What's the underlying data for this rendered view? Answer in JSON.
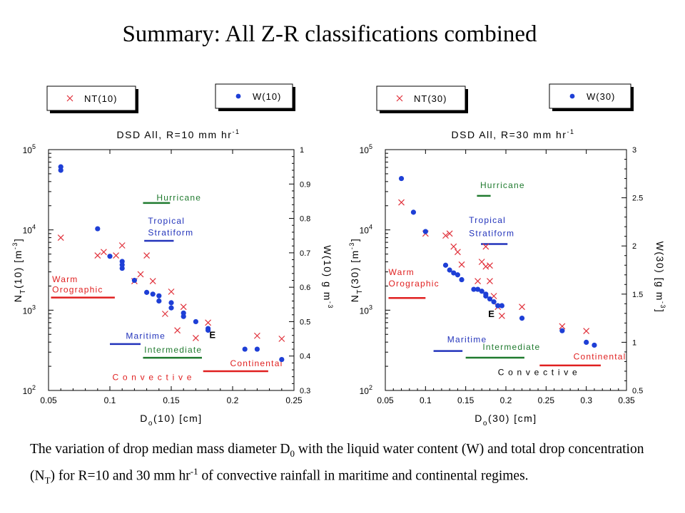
{
  "slide": {
    "title": "Summary:  All Z-R classifications combined",
    "caption": [
      {
        "t": "The variation of drop median mass diameter D"
      },
      {
        "t": "0",
        "sub": true
      },
      {
        "t": " with the liquid water content (W) and total drop concentration (N"
      },
      {
        "t": "T",
        "sub": true
      },
      {
        "t": ") for R=10 and 30 mm hr"
      },
      {
        "t": "-1",
        "sup": true
      },
      {
        "t": " of convective rainfall in maritime and continental regimes."
      }
    ]
  },
  "colors": {
    "nt_marker": "#e0303a",
    "w_marker": "#1e3fd6",
    "hurricane": "#1f7a2e",
    "tropical_stratiform": "#2233bb",
    "warm_orographic": "#e02020",
    "maritime": "#2233bb",
    "intermediate": "#1f7a2e",
    "continental": "#e02020",
    "convective": "#e02020"
  },
  "chart_data": [
    {
      "type": "scatter",
      "title": "DSD  All, R=10 mm hr",
      "title_sup": "-1",
      "xlabel": "(10) [cm]",
      "xlabel_prefix": "D",
      "xlabel_sub": "o",
      "ylabel": "(10)  [m",
      "ylabel_prefix": "N",
      "ylabel_sub": "T",
      "ylabel_sup": "-3",
      "ylabel_end": "]",
      "y2label": "W(10) g m",
      "y2label_sup": "-3",
      "xlim": [
        0.05,
        0.25
      ],
      "xticks": [
        0.05,
        0.1,
        0.15,
        0.2,
        0.25
      ],
      "xtick_labels": [
        "0.05",
        "0.1",
        "0.15",
        "0.2",
        "0.25"
      ],
      "ylim": [
        100,
        100000
      ],
      "yscale": "log",
      "yticks": [
        100,
        1000,
        10000,
        100000
      ],
      "ytick_base": [
        "10",
        "10",
        "10",
        "10"
      ],
      "ytick_exp": [
        "2",
        "3",
        "4",
        "5"
      ],
      "y2lim": [
        0.3,
        1.0
      ],
      "y2ticks": [
        0.3,
        0.4,
        0.5,
        0.6,
        0.7,
        0.8,
        0.9,
        1.0
      ],
      "y2tick_labels": [
        "0.3",
        "0.4",
        "0.5",
        "0.6",
        "0.7",
        "0.8",
        "0.9",
        "1"
      ],
      "legend": [
        {
          "label": "NT(10)",
          "marker": "x"
        },
        {
          "label": "W(10)",
          "marker": "dot"
        }
      ],
      "series": [
        {
          "name": "NT(10)",
          "marker": "x",
          "axis": "left",
          "x": [
            0.06,
            0.09,
            0.095,
            0.105,
            0.11,
            0.12,
            0.125,
            0.13,
            0.135,
            0.145,
            0.15,
            0.155,
            0.16,
            0.17,
            0.18,
            0.22,
            0.24
          ],
          "y": [
            8000,
            4800,
            5300,
            4800,
            6400,
            2300,
            2800,
            4800,
            2300,
            900,
            1700,
            560,
            1100,
            450,
            700,
            480,
            440
          ]
        },
        {
          "name": "W(10)",
          "marker": "dot",
          "axis": "right",
          "x": [
            0.06,
            0.06,
            0.09,
            0.1,
            0.11,
            0.11,
            0.11,
            0.12,
            0.13,
            0.135,
            0.14,
            0.14,
            0.15,
            0.15,
            0.16,
            0.16,
            0.17,
            0.18,
            0.18,
            0.21,
            0.22,
            0.24
          ],
          "y": [
            0.95,
            0.94,
            0.77,
            0.69,
            0.675,
            0.665,
            0.655,
            0.62,
            0.585,
            0.58,
            0.575,
            0.56,
            0.555,
            0.54,
            0.525,
            0.515,
            0.5,
            0.48,
            0.475,
            0.42,
            0.42,
            0.39
          ]
        }
      ],
      "annotations": [
        {
          "text": "Hurricane",
          "x": 0.138,
          "y": 0.852,
          "line": [
            0.127,
            0.149,
            0.845
          ],
          "color_key": "hurricane"
        },
        {
          "text": "Tropical",
          "x": 0.131,
          "y": 0.785,
          "color_key": "tropical_stratiform"
        },
        {
          "text": "Stratiform",
          "x": 0.131,
          "y": 0.75,
          "line": [
            0.128,
            0.152,
            0.735
          ],
          "color_key": "tropical_stratiform"
        },
        {
          "text": "Warm",
          "x": 0.053,
          "y": 0.615,
          "color_key": "warm_orographic"
        },
        {
          "text": "Orographic",
          "x": 0.053,
          "y": 0.585,
          "line": [
            0.052,
            0.104,
            0.57
          ],
          "color_key": "warm_orographic"
        },
        {
          "text": "Maritime",
          "x": 0.113,
          "y": 0.45,
          "line": [
            0.1,
            0.125,
            0.435
          ],
          "color_key": "maritime"
        },
        {
          "text": "Intermediate",
          "x": 0.128,
          "y": 0.41,
          "line": [
            0.127,
            0.175,
            0.395
          ],
          "color_key": "intermediate"
        },
        {
          "text": "Continental",
          "x": 0.198,
          "y": 0.37,
          "line": [
            0.176,
            0.229,
            0.356
          ],
          "color_key": "continental"
        },
        {
          "text": "C o n v e c t i v e",
          "x": 0.102,
          "y": 0.33,
          "color_key": "convective"
        },
        {
          "text": "E",
          "x": 0.181,
          "y": 0.452,
          "color_key": "black"
        }
      ]
    },
    {
      "type": "scatter",
      "title": "DSD  All, R=30 mm hr",
      "title_sup": "-1",
      "xlabel": "(30) [cm]",
      "xlabel_prefix": "D",
      "xlabel_sub": "o",
      "ylabel": "(30) [m",
      "ylabel_prefix": "N",
      "ylabel_sub": "T",
      "ylabel_sup": "-3",
      "ylabel_end": "]",
      "y2label": "W(30) [g m",
      "y2label_sup": "-3",
      "y2label_end": "]",
      "xlim": [
        0.05,
        0.35
      ],
      "xticks": [
        0.05,
        0.1,
        0.15,
        0.2,
        0.25,
        0.3,
        0.35
      ],
      "xtick_labels": [
        "0.05",
        "0.1",
        "0.15",
        "0.2",
        "0.25",
        "0.3",
        "0.35"
      ],
      "ylim": [
        100,
        100000
      ],
      "yscale": "log",
      "yticks": [
        100,
        1000,
        10000,
        100000
      ],
      "ytick_base": [
        "10",
        "10",
        "10",
        "10"
      ],
      "ytick_exp": [
        "2",
        "3",
        "4",
        "5"
      ],
      "y2lim": [
        0.5,
        3.0
      ],
      "y2ticks": [
        0.5,
        1.0,
        1.5,
        2.0,
        2.5,
        3.0
      ],
      "y2tick_labels": [
        "0.5",
        "1",
        "1.5",
        "2",
        "2.5",
        "3"
      ],
      "legend": [
        {
          "label": "NT(30)",
          "marker": "x"
        },
        {
          "label": "W(30)",
          "marker": "dot"
        }
      ],
      "series": [
        {
          "name": "NT(30)",
          "marker": "x",
          "axis": "left",
          "x": [
            0.07,
            0.1,
            0.125,
            0.13,
            0.135,
            0.14,
            0.145,
            0.165,
            0.17,
            0.175,
            0.175,
            0.18,
            0.18,
            0.185,
            0.19,
            0.195,
            0.22,
            0.27,
            0.3
          ],
          "y": [
            22000,
            9000,
            8500,
            9000,
            6200,
            5300,
            3700,
            2300,
            4000,
            6200,
            3500,
            2300,
            3600,
            1500,
            1100,
            850,
            1100,
            630,
            550
          ]
        },
        {
          "name": "W(30)",
          "marker": "dot",
          "axis": "right",
          "x": [
            0.07,
            0.085,
            0.1,
            0.125,
            0.13,
            0.135,
            0.14,
            0.145,
            0.16,
            0.165,
            0.17,
            0.175,
            0.175,
            0.18,
            0.185,
            0.19,
            0.195,
            0.22,
            0.27,
            0.3,
            0.31
          ],
          "y": [
            2.7,
            2.35,
            2.15,
            1.8,
            1.75,
            1.72,
            1.7,
            1.65,
            1.55,
            1.55,
            1.53,
            1.5,
            1.48,
            1.45,
            1.42,
            1.38,
            1.38,
            1.25,
            1.12,
            1.0,
            0.97
          ]
        }
      ],
      "annotations": [
        {
          "text": "Hurricane",
          "x": 0.168,
          "y": 2.6,
          "line": [
            0.164,
            0.181,
            2.52
          ],
          "color_key": "hurricane"
        },
        {
          "text": "Tropical",
          "x": 0.154,
          "y": 2.24,
          "color_key": "tropical_stratiform"
        },
        {
          "text": "Stratiform",
          "x": 0.154,
          "y": 2.1,
          "line": [
            0.169,
            0.202,
            2.02
          ],
          "color_key": "tropical_stratiform"
        },
        {
          "text": "Warm",
          "x": 0.054,
          "y": 1.7,
          "color_key": "warm_orographic"
        },
        {
          "text": "Orographic",
          "x": 0.054,
          "y": 1.58,
          "line": [
            0.054,
            0.1,
            1.46
          ],
          "color_key": "warm_orographic"
        },
        {
          "text": "Maritime",
          "x": 0.127,
          "y": 1.0,
          "line": [
            0.11,
            0.146,
            0.91
          ],
          "color_key": "maritime"
        },
        {
          "text": "Intermediate",
          "x": 0.171,
          "y": 0.92,
          "line": [
            0.15,
            0.223,
            0.84
          ],
          "color_key": "intermediate"
        },
        {
          "text": "Continental",
          "x": 0.284,
          "y": 0.82,
          "line": [
            0.242,
            0.318,
            0.76
          ],
          "color_key": "continental"
        },
        {
          "text": "C o n v e c t i v e",
          "x": 0.19,
          "y": 0.66,
          "color_key": "black"
        },
        {
          "text": "E",
          "x": 0.178,
          "y": 1.26,
          "color_key": "black"
        }
      ]
    }
  ]
}
